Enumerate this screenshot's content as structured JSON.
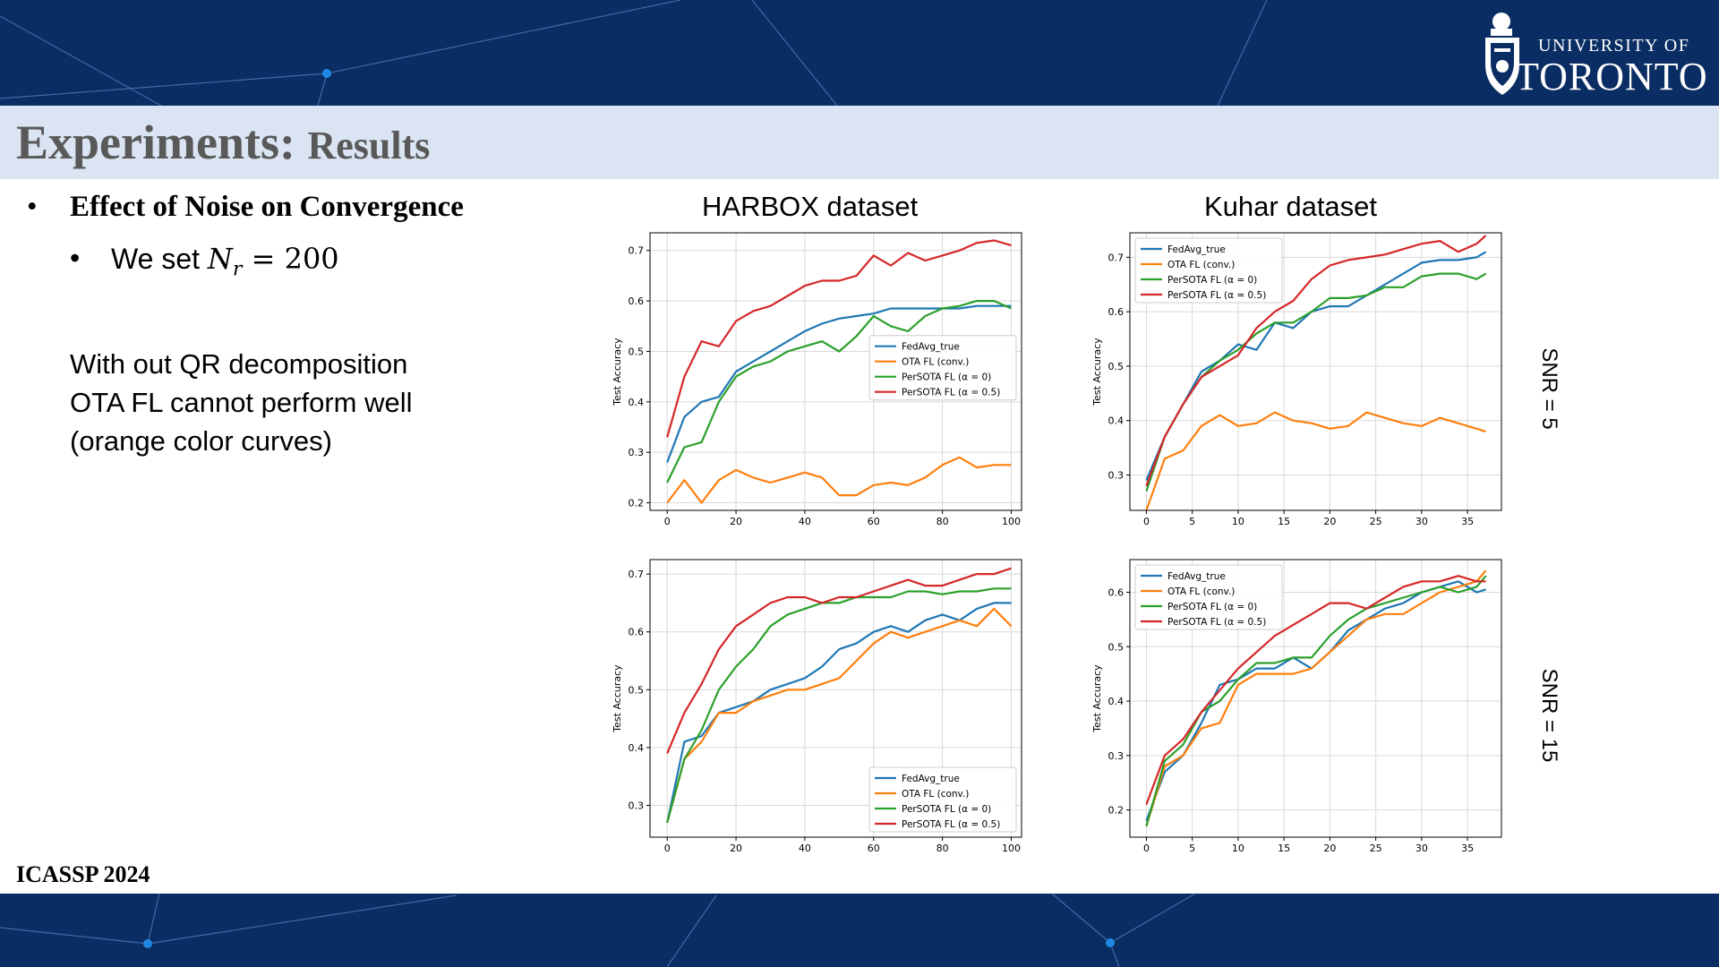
{
  "header": {
    "title_main": "Experiments: ",
    "title_sub": "Results",
    "logo_line1": "UNIVERSITY OF",
    "logo_line2": "TORONTO"
  },
  "content": {
    "bullet1": "Effect of Noise on Convergence",
    "bullet2_prefix": "We set ",
    "bullet2_symbol": "N",
    "bullet2_subscript": "r",
    "bullet2_value": " = 200",
    "note_lines": [
      "With out QR decomposition",
      "OTA FL cannot perform well",
      "(orange color curves)"
    ],
    "col_titles": [
      "HARBOX dataset",
      "Kuhar dataset"
    ],
    "snr_labels": [
      "SNR = 5",
      "SNR = 15"
    ],
    "footer": "ICASSP 2024"
  },
  "colors": {
    "banner": "#0a2d63",
    "title_bar": "#dbe4f3",
    "fedavg": "#1f77b4",
    "ota": "#ff7f0e",
    "persota0": "#2ca02c",
    "persota05": "#d62728"
  },
  "chart_data": [
    {
      "type": "line",
      "ylabel": "Test Accuracy",
      "xlim": [
        -5,
        103
      ],
      "ylim": [
        0.185,
        0.735
      ],
      "xticks": [
        0,
        20,
        40,
        60,
        80,
        100
      ],
      "yticks": [
        0.2,
        0.3,
        0.4,
        0.5,
        0.6,
        0.7
      ],
      "legend": "center-right",
      "x": [
        0,
        5,
        10,
        15,
        20,
        25,
        30,
        35,
        40,
        45,
        50,
        55,
        60,
        65,
        70,
        75,
        80,
        85,
        90,
        95,
        100
      ],
      "series": [
        {
          "name": "FedAvg_true",
          "color": "#1f77b4",
          "values": [
            0.28,
            0.37,
            0.4,
            0.41,
            0.46,
            0.48,
            0.5,
            0.52,
            0.54,
            0.555,
            0.565,
            0.57,
            0.575,
            0.585,
            0.585,
            0.585,
            0.585,
            0.585,
            0.59,
            0.59,
            0.59
          ]
        },
        {
          "name": "OTA FL (conv.)",
          "color": "#ff7f0e",
          "values": [
            0.2,
            0.245,
            0.2,
            0.245,
            0.265,
            0.25,
            0.24,
            0.25,
            0.26,
            0.25,
            0.215,
            0.215,
            0.235,
            0.24,
            0.235,
            0.25,
            0.275,
            0.29,
            0.27,
            0.275,
            0.275
          ]
        },
        {
          "name": "PerSOTA FL (α = 0)",
          "color": "#2ca02c",
          "values": [
            0.24,
            0.31,
            0.32,
            0.4,
            0.45,
            0.47,
            0.48,
            0.5,
            0.51,
            0.52,
            0.5,
            0.53,
            0.57,
            0.55,
            0.54,
            0.57,
            0.585,
            0.59,
            0.6,
            0.6,
            0.585
          ]
        },
        {
          "name": "PerSOTA FL (α = 0.5)",
          "color": "#d62728",
          "values": [
            0.33,
            0.45,
            0.52,
            0.51,
            0.56,
            0.58,
            0.59,
            0.61,
            0.63,
            0.64,
            0.64,
            0.65,
            0.69,
            0.67,
            0.695,
            0.68,
            0.69,
            0.7,
            0.715,
            0.72,
            0.71
          ]
        }
      ]
    },
    {
      "type": "line",
      "ylabel": "Test Accuracy",
      "xlim": [
        -1.8,
        38.7
      ],
      "ylim": [
        0.235,
        0.745
      ],
      "xticks": [
        0,
        5,
        10,
        15,
        20,
        25,
        30,
        35
      ],
      "yticks": [
        0.3,
        0.4,
        0.5,
        0.6,
        0.7
      ],
      "legend": "top-left",
      "x": [
        0,
        2,
        4,
        6,
        8,
        10,
        12,
        14,
        16,
        18,
        20,
        22,
        24,
        26,
        28,
        30,
        32,
        34,
        36,
        37
      ],
      "series": [
        {
          "name": "FedAvg_true",
          "color": "#1f77b4",
          "values": [
            0.29,
            0.37,
            0.43,
            0.49,
            0.51,
            0.54,
            0.53,
            0.58,
            0.57,
            0.6,
            0.61,
            0.61,
            0.63,
            0.65,
            0.67,
            0.69,
            0.695,
            0.695,
            0.7,
            0.71
          ]
        },
        {
          "name": "OTA FL (conv.)",
          "color": "#ff7f0e",
          "values": [
            0.235,
            0.33,
            0.345,
            0.39,
            0.41,
            0.39,
            0.395,
            0.415,
            0.4,
            0.395,
            0.385,
            0.39,
            0.415,
            0.405,
            0.395,
            0.39,
            0.405,
            0.395,
            0.385,
            0.38
          ]
        },
        {
          "name": "PerSOTA FL (α = 0)",
          "color": "#2ca02c",
          "values": [
            0.27,
            0.37,
            0.43,
            0.48,
            0.51,
            0.53,
            0.56,
            0.58,
            0.58,
            0.6,
            0.625,
            0.625,
            0.63,
            0.645,
            0.645,
            0.665,
            0.67,
            0.67,
            0.66,
            0.67
          ]
        },
        {
          "name": "PerSOTA FL (α = 0.5)",
          "color": "#d62728",
          "values": [
            0.28,
            0.37,
            0.43,
            0.48,
            0.5,
            0.52,
            0.57,
            0.6,
            0.62,
            0.66,
            0.685,
            0.695,
            0.7,
            0.705,
            0.715,
            0.725,
            0.73,
            0.71,
            0.725,
            0.74
          ]
        }
      ]
    },
    {
      "type": "line",
      "ylabel": "Test Accuracy",
      "xlim": [
        -5,
        103
      ],
      "ylim": [
        0.245,
        0.725
      ],
      "xticks": [
        0,
        20,
        40,
        60,
        80,
        100
      ],
      "yticks": [
        0.3,
        0.4,
        0.5,
        0.6,
        0.7
      ],
      "legend": "bottom-right",
      "x": [
        0,
        5,
        10,
        15,
        20,
        25,
        30,
        35,
        40,
        45,
        50,
        55,
        60,
        65,
        70,
        75,
        80,
        85,
        90,
        95,
        100
      ],
      "series": [
        {
          "name": "FedAvg_true",
          "color": "#1f77b4",
          "values": [
            0.27,
            0.41,
            0.42,
            0.46,
            0.47,
            0.48,
            0.5,
            0.51,
            0.52,
            0.54,
            0.57,
            0.58,
            0.6,
            0.61,
            0.6,
            0.62,
            0.63,
            0.62,
            0.64,
            0.65,
            0.65
          ]
        },
        {
          "name": "OTA FL (conv.)",
          "color": "#ff7f0e",
          "values": [
            0.27,
            0.38,
            0.41,
            0.46,
            0.46,
            0.48,
            0.49,
            0.5,
            0.5,
            0.51,
            0.52,
            0.55,
            0.58,
            0.6,
            0.59,
            0.6,
            0.61,
            0.62,
            0.61,
            0.64,
            0.61
          ]
        },
        {
          "name": "PerSOTA FL (α = 0)",
          "color": "#2ca02c",
          "values": [
            0.27,
            0.38,
            0.43,
            0.5,
            0.54,
            0.57,
            0.61,
            0.63,
            0.64,
            0.65,
            0.65,
            0.66,
            0.66,
            0.66,
            0.67,
            0.67,
            0.665,
            0.67,
            0.67,
            0.675,
            0.675
          ]
        },
        {
          "name": "PerSOTA FL (α = 0.5)",
          "color": "#d62728",
          "values": [
            0.39,
            0.46,
            0.51,
            0.57,
            0.61,
            0.63,
            0.65,
            0.66,
            0.66,
            0.65,
            0.66,
            0.66,
            0.67,
            0.68,
            0.69,
            0.68,
            0.68,
            0.69,
            0.7,
            0.7,
            0.71
          ]
        }
      ]
    },
    {
      "type": "line",
      "ylabel": "Test Accuracy",
      "xlim": [
        -1.8,
        38.7
      ],
      "ylim": [
        0.15,
        0.66
      ],
      "xticks": [
        0,
        5,
        10,
        15,
        20,
        25,
        30,
        35
      ],
      "yticks": [
        0.2,
        0.3,
        0.4,
        0.5,
        0.6
      ],
      "legend": "top-left",
      "x": [
        0,
        2,
        4,
        6,
        8,
        10,
        12,
        14,
        16,
        18,
        20,
        22,
        24,
        26,
        28,
        30,
        32,
        34,
        36,
        37
      ],
      "series": [
        {
          "name": "FedAvg_true",
          "color": "#1f77b4",
          "values": [
            0.18,
            0.27,
            0.3,
            0.36,
            0.43,
            0.44,
            0.46,
            0.46,
            0.48,
            0.46,
            0.49,
            0.53,
            0.55,
            0.57,
            0.58,
            0.6,
            0.61,
            0.62,
            0.6,
            0.605
          ]
        },
        {
          "name": "OTA FL (conv.)",
          "color": "#ff7f0e",
          "values": [
            0.17,
            0.28,
            0.3,
            0.35,
            0.36,
            0.43,
            0.45,
            0.45,
            0.45,
            0.46,
            0.49,
            0.52,
            0.55,
            0.56,
            0.56,
            0.58,
            0.6,
            0.61,
            0.62,
            0.64
          ]
        },
        {
          "name": "PerSOTA FL (α = 0)",
          "color": "#2ca02c",
          "values": [
            0.17,
            0.29,
            0.32,
            0.38,
            0.4,
            0.44,
            0.47,
            0.47,
            0.48,
            0.48,
            0.52,
            0.55,
            0.57,
            0.58,
            0.59,
            0.6,
            0.61,
            0.6,
            0.61,
            0.63
          ]
        },
        {
          "name": "PerSOTA FL (α = 0.5)",
          "color": "#d62728",
          "values": [
            0.21,
            0.3,
            0.33,
            0.38,
            0.42,
            0.46,
            0.49,
            0.52,
            0.54,
            0.56,
            0.58,
            0.58,
            0.57,
            0.59,
            0.61,
            0.62,
            0.62,
            0.63,
            0.62,
            0.62
          ]
        }
      ]
    }
  ]
}
